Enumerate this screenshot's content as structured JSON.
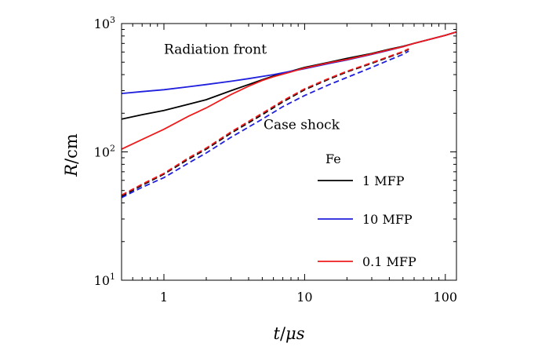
{
  "chart_data": {
    "type": "line",
    "xlabel": {
      "var": "t",
      "unit": "μs"
    },
    "ylabel": {
      "var": "R",
      "unit": "cm"
    },
    "xscale": "log",
    "yscale": "log",
    "xlim": [
      0.5,
      120
    ],
    "ylim": [
      10,
      1000
    ],
    "grid": false,
    "x_ticks": [
      {
        "value": 1,
        "label": "1"
      },
      {
        "value": 10,
        "label": "10"
      },
      {
        "value": 100,
        "label": "100"
      }
    ],
    "y_ticks": [
      {
        "value": 10,
        "base": "10",
        "exp": "1"
      },
      {
        "value": 100,
        "base": "10",
        "exp": "2"
      },
      {
        "value": 1000,
        "base": "10",
        "exp": "3"
      }
    ],
    "annotations": [
      {
        "text": "Radiation front",
        "x": 1.0,
        "y": 580
      },
      {
        "text": "Case shock",
        "x": 5.1,
        "y": 150
      }
    ],
    "legend": {
      "title": "Fe",
      "placement": "bottom-right",
      "entries": [
        {
          "label": "1 MFP",
          "color": "#000000"
        },
        {
          "label": "10 MFP",
          "color": "#1f1fdd"
        },
        {
          "label": "0.1 MFP",
          "color": "#ee1c1c"
        }
      ]
    },
    "series": [
      {
        "material": "Fe",
        "mfp": "1 MFP",
        "front": "Radiation front",
        "color": "#000000",
        "style": "solid",
        "x": [
          0.5,
          0.7,
          1,
          1.5,
          2,
          3,
          4,
          5,
          6,
          8,
          10,
          15,
          20,
          30,
          40,
          50,
          60,
          80,
          100,
          120
        ],
        "y": [
          180,
          195,
          210,
          235,
          255,
          300,
          335,
          365,
          390,
          425,
          455,
          500,
          535,
          585,
          630,
          665,
          700,
          760,
          810,
          860
        ]
      },
      {
        "material": "Fe",
        "mfp": "10 MFP",
        "front": "Radiation front",
        "color": "#1f1fdd",
        "style": "solid",
        "x": [
          0.5,
          0.7,
          1,
          1.5,
          2,
          3,
          4,
          5,
          6,
          8,
          10,
          15,
          20,
          30,
          40,
          50,
          60,
          80,
          100,
          120
        ],
        "y": [
          285,
          295,
          305,
          322,
          335,
          355,
          372,
          387,
          400,
          425,
          445,
          490,
          520,
          575,
          620,
          660,
          700,
          760,
          810,
          860
        ]
      },
      {
        "material": "Fe",
        "mfp": "0.1 MFP",
        "front": "Radiation front",
        "color": "#ee1c1c",
        "style": "solid",
        "x": [
          0.5,
          0.7,
          1,
          1.5,
          2,
          3,
          4,
          5,
          6,
          8,
          10,
          15,
          20,
          30,
          40,
          50,
          60,
          80,
          100,
          120
        ],
        "y": [
          105,
          125,
          150,
          190,
          220,
          280,
          325,
          360,
          385,
          420,
          450,
          495,
          525,
          580,
          625,
          660,
          700,
          760,
          810,
          860
        ]
      },
      {
        "material": "Fe",
        "mfp": "1 MFP",
        "front": "Case shock",
        "color": "#000000",
        "style": "dashed",
        "x": [
          0.5,
          0.7,
          1,
          1.5,
          2,
          3,
          5,
          7,
          10,
          15,
          20,
          30,
          40,
          50,
          55
        ],
        "y": [
          45,
          55,
          67,
          88,
          105,
          140,
          195,
          245,
          305,
          370,
          420,
          490,
          550,
          600,
          630
        ]
      },
      {
        "material": "Fe",
        "mfp": "10 MFP",
        "front": "Case shock",
        "color": "#1f1fdd",
        "style": "dashed",
        "x": [
          0.5,
          0.7,
          1,
          1.5,
          2,
          3,
          5,
          7,
          10,
          15,
          20,
          30,
          40,
          50,
          55
        ],
        "y": [
          44,
          53,
          63,
          82,
          98,
          130,
          180,
          225,
          275,
          335,
          380,
          455,
          520,
          575,
          610
        ]
      },
      {
        "material": "Fe",
        "mfp": "0.1 MFP",
        "front": "Case shock",
        "color": "#ee1c1c",
        "style": "dashed",
        "x": [
          0.5,
          0.7,
          1,
          1.5,
          2,
          3,
          5,
          7,
          10,
          15,
          20,
          30,
          40,
          50,
          55
        ],
        "y": [
          46,
          56,
          68,
          90,
          107,
          143,
          200,
          250,
          310,
          375,
          425,
          495,
          555,
          605,
          635
        ]
      }
    ]
  }
}
